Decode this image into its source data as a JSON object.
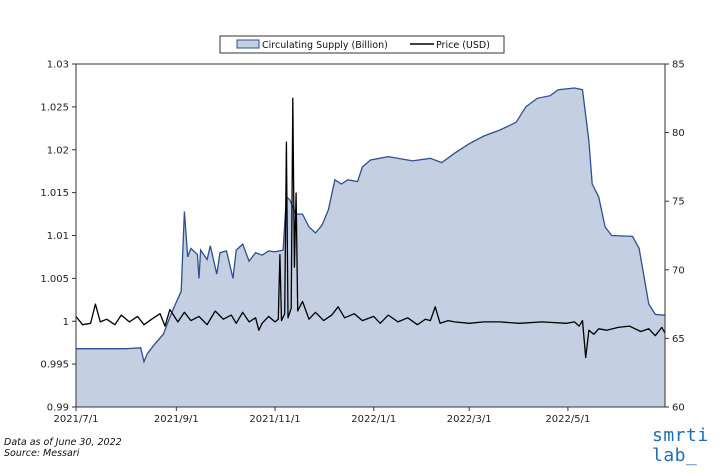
{
  "chart_data": {
    "type": "area",
    "legend": {
      "placement": "top-center",
      "supply_label": "Circulating Supply (Billion)",
      "price_label": "Price (USD)"
    },
    "x_ticks": [
      "2021/7/1",
      "2021/9/1",
      "2021/11/1",
      "2022/1/1",
      "2022/3/1",
      "2022/5/1"
    ],
    "x_range": [
      "2021-07-01",
      "2022-06-30"
    ],
    "left_axis": {
      "min": 0.99,
      "max": 1.03,
      "ticks": [
        "0.99",
        "0.995",
        "1",
        "1.005",
        "1.01",
        "1.015",
        "1.02",
        "1.025",
        "1.03"
      ]
    },
    "right_axis": {
      "min": 60,
      "max": 85,
      "ticks": [
        "60",
        "65",
        "70",
        "75",
        "80",
        "85"
      ]
    },
    "colors": {
      "supply_fill": "#c5cfe2",
      "supply_line": "#2f4f8f",
      "price_line": "#000000"
    },
    "series": [
      {
        "name": "Circulating Supply (Billion)",
        "axis": "left",
        "points": [
          [
            "2021-07-01",
            0.9968
          ],
          [
            "2021-08-01",
            0.9968
          ],
          [
            "2021-08-10",
            0.9969
          ],
          [
            "2021-08-12",
            0.9953
          ],
          [
            "2021-08-14",
            0.9962
          ],
          [
            "2021-08-18",
            0.9972
          ],
          [
            "2021-08-24",
            0.9985
          ],
          [
            "2021-08-28",
            1.0005
          ],
          [
            "2021-08-31",
            1.0018
          ],
          [
            "2021-09-04",
            1.0035
          ],
          [
            "2021-09-06",
            1.0128
          ],
          [
            "2021-09-08",
            1.0075
          ],
          [
            "2021-09-10",
            1.0085
          ],
          [
            "2021-09-14",
            1.0078
          ],
          [
            "2021-09-15",
            1.005
          ],
          [
            "2021-09-16",
            1.0083
          ],
          [
            "2021-09-20",
            1.0072
          ],
          [
            "2021-09-22",
            1.0088
          ],
          [
            "2021-09-26",
            1.0055
          ],
          [
            "2021-09-28",
            1.008
          ],
          [
            "2021-10-02",
            1.0082
          ],
          [
            "2021-10-06",
            1.005
          ],
          [
            "2021-10-08",
            1.0083
          ],
          [
            "2021-10-12",
            1.009
          ],
          [
            "2021-10-16",
            1.007
          ],
          [
            "2021-10-20",
            1.008
          ],
          [
            "2021-10-24",
            1.0077
          ],
          [
            "2021-10-28",
            1.0082
          ],
          [
            "2021-11-01",
            1.0081
          ],
          [
            "2021-11-06",
            1.0083
          ],
          [
            "2021-11-08",
            1.0145
          ],
          [
            "2021-11-10",
            1.0142
          ],
          [
            "2021-11-14",
            1.0125
          ],
          [
            "2021-11-18",
            1.0125
          ],
          [
            "2021-11-22",
            1.011
          ],
          [
            "2021-11-26",
            1.0103
          ],
          [
            "2021-11-30",
            1.0112
          ],
          [
            "2021-12-04",
            1.013
          ],
          [
            "2021-12-08",
            1.0165
          ],
          [
            "2021-12-12",
            1.016
          ],
          [
            "2021-12-16",
            1.0165
          ],
          [
            "2021-12-22",
            1.0163
          ],
          [
            "2021-12-25",
            1.018
          ],
          [
            "2021-12-30",
            1.0188
          ],
          [
            "2022-01-10",
            1.0192
          ],
          [
            "2022-01-25",
            1.0187
          ],
          [
            "2022-02-05",
            1.019
          ],
          [
            "2022-02-12",
            1.0185
          ],
          [
            "2022-02-20",
            1.0196
          ],
          [
            "2022-03-01",
            1.0207
          ],
          [
            "2022-03-10",
            1.0216
          ],
          [
            "2022-03-20",
            1.0223
          ],
          [
            "2022-03-30",
            1.0232
          ],
          [
            "2022-04-05",
            1.025
          ],
          [
            "2022-04-12",
            1.026
          ],
          [
            "2022-04-20",
            1.0263
          ],
          [
            "2022-04-25",
            1.027
          ],
          [
            "2022-05-05",
            1.0272
          ],
          [
            "2022-05-10",
            1.027
          ],
          [
            "2022-05-14",
            1.021
          ],
          [
            "2022-05-16",
            1.016
          ],
          [
            "2022-05-20",
            1.0145
          ],
          [
            "2022-05-24",
            1.011
          ],
          [
            "2022-05-28",
            1.01
          ],
          [
            "2022-06-10",
            1.0099
          ],
          [
            "2022-06-14",
            1.0085
          ],
          [
            "2022-06-20",
            1.002
          ],
          [
            "2022-06-24",
            1.0008
          ],
          [
            "2022-06-30",
            1.0007
          ]
        ]
      },
      {
        "name": "Price (USD)",
        "axis": "right",
        "points": [
          [
            "2021-07-01",
            66.6
          ],
          [
            "2021-07-05",
            66.0
          ],
          [
            "2021-07-10",
            66.1
          ],
          [
            "2021-07-13",
            67.5
          ],
          [
            "2021-07-16",
            66.2
          ],
          [
            "2021-07-20",
            66.4
          ],
          [
            "2021-07-25",
            66.0
          ],
          [
            "2021-07-29",
            66.7
          ],
          [
            "2021-08-03",
            66.2
          ],
          [
            "2021-08-08",
            66.6
          ],
          [
            "2021-08-12",
            66.0
          ],
          [
            "2021-08-18",
            66.5
          ],
          [
            "2021-08-22",
            66.8
          ],
          [
            "2021-08-25",
            65.9
          ],
          [
            "2021-08-28",
            67.1
          ],
          [
            "2021-09-02",
            66.2
          ],
          [
            "2021-09-06",
            66.9
          ],
          [
            "2021-09-10",
            66.3
          ],
          [
            "2021-09-15",
            66.6
          ],
          [
            "2021-09-20",
            66.0
          ],
          [
            "2021-09-25",
            67.0
          ],
          [
            "2021-09-30",
            66.4
          ],
          [
            "2021-10-05",
            66.7
          ],
          [
            "2021-10-08",
            66.1
          ],
          [
            "2021-10-12",
            66.9
          ],
          [
            "2021-10-16",
            66.2
          ],
          [
            "2021-10-20",
            66.5
          ],
          [
            "2021-10-22",
            65.6
          ],
          [
            "2021-10-24",
            66.1
          ],
          [
            "2021-10-28",
            66.6
          ],
          [
            "2021-11-01",
            66.2
          ],
          [
            "2021-11-03",
            66.4
          ],
          [
            "2021-11-04",
            71.1
          ],
          [
            "2021-11-05",
            66.3
          ],
          [
            "2021-11-07",
            66.8
          ],
          [
            "2021-11-08",
            79.3
          ],
          [
            "2021-11-09",
            66.5
          ],
          [
            "2021-11-11",
            67.2
          ],
          [
            "2021-11-12",
            82.5
          ],
          [
            "2021-11-13",
            70.2
          ],
          [
            "2021-11-14",
            75.6
          ],
          [
            "2021-11-15",
            67.0
          ],
          [
            "2021-11-18",
            67.7
          ],
          [
            "2021-11-22",
            66.4
          ],
          [
            "2021-11-26",
            66.9
          ],
          [
            "2021-12-01",
            66.3
          ],
          [
            "2021-12-06",
            66.7
          ],
          [
            "2021-12-10",
            67.3
          ],
          [
            "2021-12-14",
            66.5
          ],
          [
            "2021-12-20",
            66.8
          ],
          [
            "2021-12-25",
            66.3
          ],
          [
            "2022-01-01",
            66.6
          ],
          [
            "2022-01-05",
            66.1
          ],
          [
            "2022-01-10",
            66.7
          ],
          [
            "2022-01-16",
            66.2
          ],
          [
            "2022-01-22",
            66.5
          ],
          [
            "2022-01-28",
            66.0
          ],
          [
            "2022-02-02",
            66.4
          ],
          [
            "2022-02-05",
            66.3
          ],
          [
            "2022-02-08",
            67.3
          ],
          [
            "2022-02-11",
            66.1
          ],
          [
            "2022-02-16",
            66.3
          ],
          [
            "2022-02-20",
            66.2
          ],
          [
            "2022-03-01",
            66.1
          ],
          [
            "2022-03-10",
            66.2
          ],
          [
            "2022-03-20",
            66.2
          ],
          [
            "2022-04-01",
            66.1
          ],
          [
            "2022-04-15",
            66.2
          ],
          [
            "2022-04-30",
            66.1
          ],
          [
            "2022-05-05",
            66.2
          ],
          [
            "2022-05-08",
            65.9
          ],
          [
            "2022-05-10",
            66.3
          ],
          [
            "2022-05-12",
            63.6
          ],
          [
            "2022-05-14",
            65.6
          ],
          [
            "2022-05-17",
            65.3
          ],
          [
            "2022-05-20",
            65.7
          ],
          [
            "2022-05-25",
            65.6
          ],
          [
            "2022-06-01",
            65.8
          ],
          [
            "2022-06-08",
            65.9
          ],
          [
            "2022-06-15",
            65.5
          ],
          [
            "2022-06-20",
            65.7
          ],
          [
            "2022-06-24",
            65.2
          ],
          [
            "2022-06-28",
            65.8
          ],
          [
            "2022-06-30",
            65.4
          ]
        ]
      }
    ]
  },
  "footnote": {
    "line1": "Data as of June 30, 2022",
    "line2": "Source: Messari"
  },
  "logo": {
    "line1": "smrti",
    "line2": "lab_"
  }
}
